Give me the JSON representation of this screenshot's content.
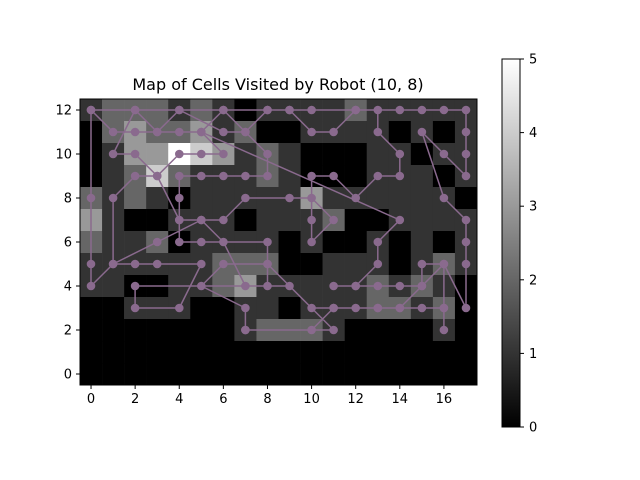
{
  "chart_data": {
    "type": "heatmap",
    "title": "Map of Cells Visited by Robot (10, 8)",
    "xlabel": "",
    "ylabel": "",
    "x_ticks": [
      0,
      2,
      4,
      6,
      8,
      10,
      12,
      14,
      16
    ],
    "y_ticks": [
      0,
      2,
      4,
      6,
      8,
      10,
      12
    ],
    "xlim": [
      -0.5,
      17.5
    ],
    "ylim": [
      -0.5,
      12.5
    ],
    "colormap": "gray",
    "colorbar": {
      "min": 0,
      "max": 5,
      "ticks": [
        0,
        1,
        2,
        3,
        4,
        5
      ]
    },
    "grid": false,
    "path_color": "#8a6a8e",
    "visit_counts": [
      [
        1,
        2,
        2,
        2,
        1,
        2,
        1,
        0,
        1,
        1,
        1,
        1,
        2,
        1,
        1,
        1,
        1,
        1
      ],
      [
        0,
        2,
        3,
        2,
        2,
        3,
        1,
        2,
        0,
        0,
        1,
        1,
        1,
        1,
        0,
        1,
        0,
        1
      ],
      [
        0,
        1,
        3,
        3,
        5,
        4,
        3,
        1,
        2,
        1,
        0,
        0,
        0,
        1,
        1,
        0,
        1,
        1
      ],
      [
        0,
        1,
        2,
        4,
        2,
        1,
        1,
        1,
        2,
        1,
        0,
        0,
        0,
        1,
        1,
        1,
        0,
        1
      ],
      [
        2,
        1,
        2,
        1,
        0,
        1,
        1,
        1,
        1,
        1,
        3,
        1,
        1,
        1,
        1,
        1,
        1,
        0
      ],
      [
        3,
        1,
        0,
        0,
        1,
        1,
        1,
        0,
        1,
        1,
        1,
        2,
        0,
        0,
        1,
        1,
        1,
        1
      ],
      [
        2,
        1,
        1,
        2,
        0,
        1,
        1,
        1,
        1,
        0,
        1,
        0,
        0,
        1,
        0,
        1,
        0,
        1
      ],
      [
        1,
        1,
        1,
        1,
        1,
        1,
        2,
        2,
        2,
        0,
        0,
        1,
        1,
        1,
        0,
        1,
        2,
        1
      ],
      [
        1,
        1,
        0,
        0,
        1,
        1,
        2,
        3,
        1,
        1,
        1,
        1,
        1,
        2,
        1,
        2,
        1,
        0
      ],
      [
        0,
        0,
        1,
        1,
        1,
        0,
        0,
        1,
        1,
        0,
        1,
        1,
        1,
        2,
        2,
        1,
        2,
        0
      ],
      [
        0,
        0,
        0,
        0,
        0,
        0,
        0,
        1,
        2,
        2,
        2,
        1,
        0,
        0,
        0,
        0,
        1,
        0
      ],
      [
        0,
        0,
        0,
        0,
        0,
        0,
        0,
        0,
        0,
        0,
        0,
        0,
        0,
        0,
        0,
        0,
        0,
        0
      ],
      [
        0,
        0,
        0,
        0,
        0,
        0,
        0,
        0,
        0,
        0,
        0,
        0,
        0,
        0,
        0,
        0,
        0,
        0
      ]
    ],
    "path": [
      [
        0,
        12
      ],
      [
        2,
        12
      ],
      [
        4,
        12
      ],
      [
        6,
        12
      ],
      [
        8,
        12
      ],
      [
        9,
        12
      ],
      [
        10,
        12
      ],
      [
        12,
        12
      ],
      [
        14,
        12
      ],
      [
        15,
        12
      ],
      [
        16,
        12
      ],
      [
        17,
        12
      ],
      [
        17,
        11
      ],
      [
        17,
        10
      ],
      [
        17,
        9
      ],
      [
        16,
        10
      ],
      [
        15,
        11
      ],
      [
        16,
        8
      ],
      [
        17,
        7
      ],
      [
        17,
        6
      ],
      [
        17,
        5
      ],
      [
        17,
        3
      ],
      [
        16,
        5
      ],
      [
        15,
        4
      ],
      [
        14,
        3
      ],
      [
        13,
        3
      ],
      [
        11,
        3
      ],
      [
        10,
        3
      ],
      [
        8,
        5
      ],
      [
        6,
        5
      ],
      [
        5,
        4
      ],
      [
        7,
        3
      ],
      [
        7,
        2
      ],
      [
        11,
        2
      ],
      [
        9,
        4
      ],
      [
        7,
        4
      ],
      [
        6,
        6
      ],
      [
        5,
        7
      ],
      [
        4,
        7
      ],
      [
        3,
        9
      ],
      [
        2,
        9
      ],
      [
        1,
        8
      ],
      [
        1,
        5
      ],
      [
        0,
        4
      ],
      [
        0,
        5
      ],
      [
        0,
        8
      ],
      [
        0,
        12
      ],
      [
        1,
        11
      ],
      [
        2,
        11
      ],
      [
        3,
        11
      ],
      [
        4,
        11
      ],
      [
        5,
        11
      ],
      [
        6,
        10
      ],
      [
        5,
        10
      ],
      [
        4,
        10
      ],
      [
        3,
        9
      ],
      [
        2,
        10
      ],
      [
        1,
        10
      ],
      [
        2,
        12
      ],
      [
        3,
        11
      ],
      [
        4,
        12
      ],
      [
        6,
        11
      ],
      [
        7,
        11
      ],
      [
        8,
        10
      ],
      [
        8,
        9
      ],
      [
        7,
        9
      ],
      [
        6,
        9
      ],
      [
        5,
        9
      ],
      [
        4,
        9
      ],
      [
        4,
        8
      ],
      [
        4,
        7
      ],
      [
        4,
        6
      ],
      [
        5,
        6
      ],
      [
        8,
        6
      ],
      [
        8,
        5
      ],
      [
        8,
        4
      ],
      [
        2,
        4
      ],
      [
        2,
        3
      ],
      [
        4,
        3
      ],
      [
        5,
        5
      ],
      [
        3,
        5
      ],
      [
        2,
        5
      ],
      [
        1,
        5
      ],
      [
        3,
        6
      ],
      [
        5,
        7
      ],
      [
        6,
        7
      ],
      [
        7,
        8
      ],
      [
        9,
        8
      ],
      [
        10,
        8
      ],
      [
        11,
        7
      ],
      [
        10,
        6
      ],
      [
        10,
        7
      ],
      [
        10,
        9
      ],
      [
        11,
        9
      ],
      [
        12,
        8
      ],
      [
        13,
        9
      ],
      [
        14,
        9
      ],
      [
        14,
        10
      ],
      [
        13,
        11
      ],
      [
        13,
        12
      ],
      [
        12,
        12
      ],
      [
        11,
        11
      ],
      [
        10,
        11
      ],
      [
        9,
        12
      ],
      [
        8,
        12
      ],
      [
        7,
        11
      ],
      [
        6,
        12
      ],
      [
        5,
        11
      ],
      [
        14,
        7
      ],
      [
        13,
        6
      ],
      [
        13,
        5
      ],
      [
        12,
        4
      ],
      [
        11,
        4
      ],
      [
        12,
        4
      ],
      [
        13,
        4
      ],
      [
        14,
        4
      ],
      [
        15,
        4
      ],
      [
        15,
        5
      ],
      [
        16,
        5
      ],
      [
        16,
        3
      ],
      [
        16,
        2
      ],
      [
        16,
        3
      ],
      [
        15,
        3
      ],
      [
        14,
        3
      ],
      [
        13,
        3
      ],
      [
        12,
        3
      ],
      [
        11,
        3
      ],
      [
        10,
        2
      ],
      [
        7,
        2
      ]
    ]
  }
}
